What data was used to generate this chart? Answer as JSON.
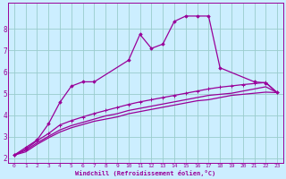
{
  "bg_color": "#cceeff",
  "grid_color": "#99cccc",
  "line_color": "#990099",
  "xlabel": "Windchill (Refroidissement éolien,°C)",
  "xlim": [
    -0.5,
    23.5
  ],
  "ylim": [
    1.8,
    9.2
  ],
  "xticks": [
    0,
    1,
    2,
    3,
    4,
    5,
    6,
    7,
    8,
    9,
    10,
    11,
    12,
    13,
    14,
    15,
    16,
    17,
    18,
    19,
    20,
    21,
    22,
    23
  ],
  "yticks": [
    2,
    3,
    4,
    5,
    6,
    7,
    8
  ],
  "series1_x": [
    0,
    1,
    2,
    3,
    4,
    5,
    6,
    7,
    10,
    11,
    12,
    13,
    14,
    15,
    16,
    17,
    18,
    21,
    22,
    23
  ],
  "series1_y": [
    2.15,
    2.5,
    2.85,
    3.6,
    4.6,
    5.35,
    5.55,
    5.55,
    6.55,
    7.75,
    7.1,
    7.3,
    8.35,
    8.6,
    8.6,
    8.6,
    6.2,
    5.55,
    5.5,
    5.05
  ],
  "series2_x": [
    0,
    1,
    2,
    3,
    4,
    5,
    6,
    7,
    8,
    9,
    10,
    11,
    12,
    13,
    14,
    15,
    16,
    17,
    18,
    19,
    20,
    21,
    22,
    23
  ],
  "series2_y": [
    2.15,
    2.42,
    2.82,
    3.15,
    3.55,
    3.75,
    3.92,
    4.08,
    4.22,
    4.36,
    4.5,
    4.62,
    4.72,
    4.82,
    4.92,
    5.02,
    5.12,
    5.22,
    5.3,
    5.36,
    5.42,
    5.47,
    5.52,
    5.05
  ],
  "series3_x": [
    0,
    1,
    2,
    3,
    4,
    5,
    6,
    7,
    8,
    9,
    10,
    11,
    12,
    13,
    14,
    15,
    16,
    17,
    18,
    19,
    20,
    21,
    22,
    23
  ],
  "series3_y": [
    2.15,
    2.37,
    2.72,
    3.02,
    3.32,
    3.52,
    3.67,
    3.82,
    3.97,
    4.07,
    4.22,
    4.32,
    4.42,
    4.52,
    4.62,
    4.72,
    4.82,
    4.92,
    4.97,
    5.02,
    5.12,
    5.22,
    5.32,
    5.05
  ],
  "series4_x": [
    0,
    1,
    2,
    3,
    4,
    5,
    6,
    7,
    8,
    9,
    10,
    11,
    12,
    13,
    14,
    15,
    16,
    17,
    18,
    19,
    20,
    21,
    22,
    23
  ],
  "series4_y": [
    2.15,
    2.3,
    2.65,
    2.95,
    3.22,
    3.42,
    3.57,
    3.72,
    3.82,
    3.92,
    4.07,
    4.17,
    4.27,
    4.37,
    4.47,
    4.57,
    4.67,
    4.72,
    4.82,
    4.92,
    4.97,
    5.02,
    5.07,
    5.05
  ]
}
